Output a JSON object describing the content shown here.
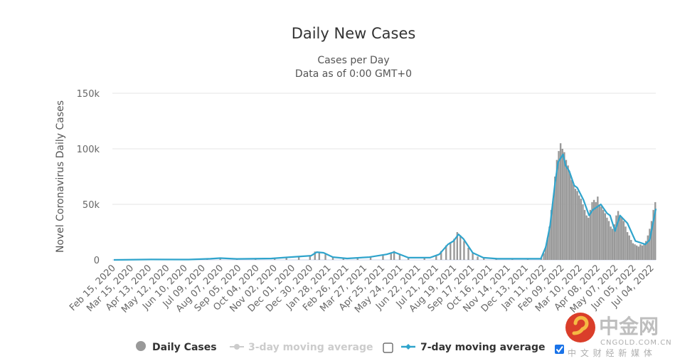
{
  "chart_data": {
    "type": "bar+line",
    "title": "Daily New Cases",
    "subtitle_lines": [
      "Cases per Day",
      "Data as of 0:00 GMT+0"
    ],
    "ylabel": "Novel Coronavirus Daily Cases",
    "xlabel": "",
    "ylim": [
      0,
      150000
    ],
    "y_ticks": [
      {
        "value": 0,
        "label": "0"
      },
      {
        "value": 50000,
        "label": "50k"
      },
      {
        "value": 100000,
        "label": "100k"
      },
      {
        "value": 150000,
        "label": "150k"
      }
    ],
    "grid": true,
    "x_tick_labels": [
      "Feb 15, 2020",
      "Mar 15, 2020",
      "Apr 13, 2020",
      "May 12, 2020",
      "Jun 10, 2020",
      "Jul 09, 2020",
      "Aug 07, 2020",
      "Sep 05, 2020",
      "Oct 04, 2020",
      "Nov 02, 2020",
      "Dec 01, 2020",
      "Dec 30, 2020",
      "Jan 28, 2021",
      "Feb 26, 2021",
      "Mar 27, 2021",
      "Apr 25, 2021",
      "May 24, 2021",
      "Jun 22, 2021",
      "Jul 21, 2021",
      "Aug 19, 2021",
      "Sep 17, 2021",
      "Oct 16, 2021",
      "Nov 14, 2021",
      "Dec 13, 2021",
      "Jan 11, 2022",
      "Feb 09, 2022",
      "Mar 10, 2022",
      "Apr 08, 2022",
      "May 07, 2022",
      "Jun 05, 2022",
      "Jul 04, 2022"
    ],
    "legend_position": "bottom",
    "series": [
      {
        "name": "Daily Cases",
        "type": "bar",
        "color": "#999999",
        "enabled": true,
        "points": [
          [
            "2020-03-01",
            100
          ],
          [
            "2020-04-01",
            500
          ],
          [
            "2020-05-01",
            300
          ],
          [
            "2020-06-01",
            300
          ],
          [
            "2020-07-15",
            1200
          ],
          [
            "2020-08-05",
            1800
          ],
          [
            "2020-09-01",
            900
          ],
          [
            "2020-10-01",
            800
          ],
          [
            "2020-11-01",
            1300
          ],
          [
            "2020-11-20",
            2500
          ],
          [
            "2020-12-10",
            3000
          ],
          [
            "2020-12-28",
            4000
          ],
          [
            "2021-01-05",
            7500
          ],
          [
            "2021-01-12",
            7000
          ],
          [
            "2021-01-22",
            5000
          ],
          [
            "2021-02-03",
            2500
          ],
          [
            "2021-02-20",
            1200
          ],
          [
            "2021-03-15",
            1500
          ],
          [
            "2021-04-05",
            2800
          ],
          [
            "2021-04-25",
            5000
          ],
          [
            "2021-05-08",
            6000
          ],
          [
            "2021-05-13",
            8000
          ],
          [
            "2021-05-22",
            5000
          ],
          [
            "2021-06-05",
            2000
          ],
          [
            "2021-07-01",
            2000
          ],
          [
            "2021-07-20",
            4000
          ],
          [
            "2021-07-28",
            8000
          ],
          [
            "2021-08-05",
            13000
          ],
          [
            "2021-08-12",
            16000
          ],
          [
            "2021-08-18",
            19000
          ],
          [
            "2021-08-23",
            25000
          ],
          [
            "2021-08-28",
            22000
          ],
          [
            "2021-09-03",
            17000
          ],
          [
            "2021-09-10",
            11000
          ],
          [
            "2021-09-17",
            6000
          ],
          [
            "2021-09-25",
            3000
          ],
          [
            "2021-10-05",
            1800
          ],
          [
            "2021-10-25",
            1000
          ],
          [
            "2021-11-20",
            700
          ],
          [
            "2021-12-15",
            700
          ],
          [
            "2022-01-06",
            2000
          ],
          [
            "2022-01-10",
            6000
          ],
          [
            "2022-01-13",
            12000
          ],
          [
            "2022-01-16",
            20000
          ],
          [
            "2022-01-19",
            30000
          ],
          [
            "2022-01-22",
            45000
          ],
          [
            "2022-01-25",
            55000
          ],
          [
            "2022-01-28",
            75000
          ],
          [
            "2022-01-31",
            90000
          ],
          [
            "2022-02-03",
            98000
          ],
          [
            "2022-02-06",
            105000
          ],
          [
            "2022-02-09",
            100000
          ],
          [
            "2022-02-12",
            97000
          ],
          [
            "2022-02-15",
            90000
          ],
          [
            "2022-02-18",
            85000
          ],
          [
            "2022-02-21",
            78000
          ],
          [
            "2022-02-24",
            72000
          ],
          [
            "2022-02-27",
            68000
          ],
          [
            "2022-03-02",
            64000
          ],
          [
            "2022-03-05",
            62000
          ],
          [
            "2022-03-08",
            58000
          ],
          [
            "2022-03-11",
            55000
          ],
          [
            "2022-03-14",
            50000
          ],
          [
            "2022-03-17",
            45000
          ],
          [
            "2022-03-20",
            40000
          ],
          [
            "2022-03-23",
            38000
          ],
          [
            "2022-03-26",
            45000
          ],
          [
            "2022-03-29",
            52000
          ],
          [
            "2022-04-01",
            54000
          ],
          [
            "2022-04-04",
            52000
          ],
          [
            "2022-04-07",
            57000
          ],
          [
            "2022-04-10",
            50000
          ],
          [
            "2022-04-13",
            48000
          ],
          [
            "2022-04-16",
            45000
          ],
          [
            "2022-04-19",
            42000
          ],
          [
            "2022-04-22",
            38000
          ],
          [
            "2022-04-25",
            35000
          ],
          [
            "2022-04-28",
            30000
          ],
          [
            "2022-05-01",
            28000
          ],
          [
            "2022-05-04",
            32000
          ],
          [
            "2022-05-07",
            40000
          ],
          [
            "2022-05-10",
            44000
          ],
          [
            "2022-05-13",
            40000
          ],
          [
            "2022-05-16",
            38000
          ],
          [
            "2022-05-19",
            35000
          ],
          [
            "2022-05-22",
            30000
          ],
          [
            "2022-05-25",
            25000
          ],
          [
            "2022-05-28",
            22000
          ],
          [
            "2022-05-31",
            18000
          ],
          [
            "2022-06-03",
            15000
          ],
          [
            "2022-06-06",
            14000
          ],
          [
            "2022-06-09",
            13000
          ],
          [
            "2022-06-12",
            12000
          ],
          [
            "2022-06-15",
            14000
          ],
          [
            "2022-06-18",
            13000
          ],
          [
            "2022-06-21",
            15000
          ],
          [
            "2022-06-24",
            17000
          ],
          [
            "2022-06-27",
            22000
          ],
          [
            "2022-06-30",
            28000
          ],
          [
            "2022-07-03",
            35000
          ],
          [
            "2022-07-06",
            45000
          ],
          [
            "2022-07-09",
            52000
          ]
        ]
      },
      {
        "name": "3-day moving average",
        "type": "line",
        "color": "#cccccc",
        "enabled": false,
        "points": []
      },
      {
        "name": "7-day moving average",
        "type": "line",
        "color": "#2fa4cc",
        "enabled": true,
        "points": [
          [
            "2020-02-15",
            0
          ],
          [
            "2020-04-15",
            400
          ],
          [
            "2020-06-15",
            300
          ],
          [
            "2020-07-20",
            1000
          ],
          [
            "2020-08-05",
            1600
          ],
          [
            "2020-09-01",
            900
          ],
          [
            "2020-10-27",
            1300
          ],
          [
            "2020-11-26",
            2500
          ],
          [
            "2020-12-30",
            3800
          ],
          [
            "2021-01-08",
            7000
          ],
          [
            "2021-01-19",
            6400
          ],
          [
            "2021-02-03",
            2500
          ],
          [
            "2021-02-26",
            1300
          ],
          [
            "2021-04-03",
            2500
          ],
          [
            "2021-05-01",
            5000
          ],
          [
            "2021-05-13",
            7000
          ],
          [
            "2021-06-05",
            2000
          ],
          [
            "2021-07-10",
            2000
          ],
          [
            "2021-07-25",
            5000
          ],
          [
            "2021-08-08",
            14000
          ],
          [
            "2021-08-17",
            17000
          ],
          [
            "2021-08-25",
            23000
          ],
          [
            "2021-09-02",
            19000
          ],
          [
            "2021-09-17",
            6400
          ],
          [
            "2021-10-04",
            2000
          ],
          [
            "2021-10-27",
            1000
          ],
          [
            "2022-01-05",
            1000
          ],
          [
            "2022-01-13",
            11500
          ],
          [
            "2022-01-20",
            31000
          ],
          [
            "2022-01-28",
            69000
          ],
          [
            "2022-02-02",
            88000
          ],
          [
            "2022-02-10",
            95000
          ],
          [
            "2022-02-14",
            85000
          ],
          [
            "2022-02-20",
            80000
          ],
          [
            "2022-02-28",
            67000
          ],
          [
            "2022-03-05",
            65000
          ],
          [
            "2022-03-15",
            54000
          ],
          [
            "2022-03-24",
            40000
          ],
          [
            "2022-03-30",
            45000
          ],
          [
            "2022-04-12",
            50000
          ],
          [
            "2022-04-22",
            42000
          ],
          [
            "2022-04-27",
            40000
          ],
          [
            "2022-05-05",
            26000
          ],
          [
            "2022-05-13",
            40000
          ],
          [
            "2022-05-25",
            33000
          ],
          [
            "2022-06-07",
            17000
          ],
          [
            "2022-06-23",
            14000
          ],
          [
            "2022-06-30",
            18000
          ],
          [
            "2022-07-10",
            46000
          ]
        ]
      }
    ]
  },
  "legend": {
    "items": [
      "Daily Cases",
      "3-day moving average",
      "7-day moving average"
    ],
    "checkbox_3day_checked": false,
    "checkbox_7day_checked": true
  },
  "watermark": {
    "brand": "中金网",
    "url": "CNGOLD.COM.CN",
    "tagline": "中 文 财 经 新 媒 体"
  }
}
